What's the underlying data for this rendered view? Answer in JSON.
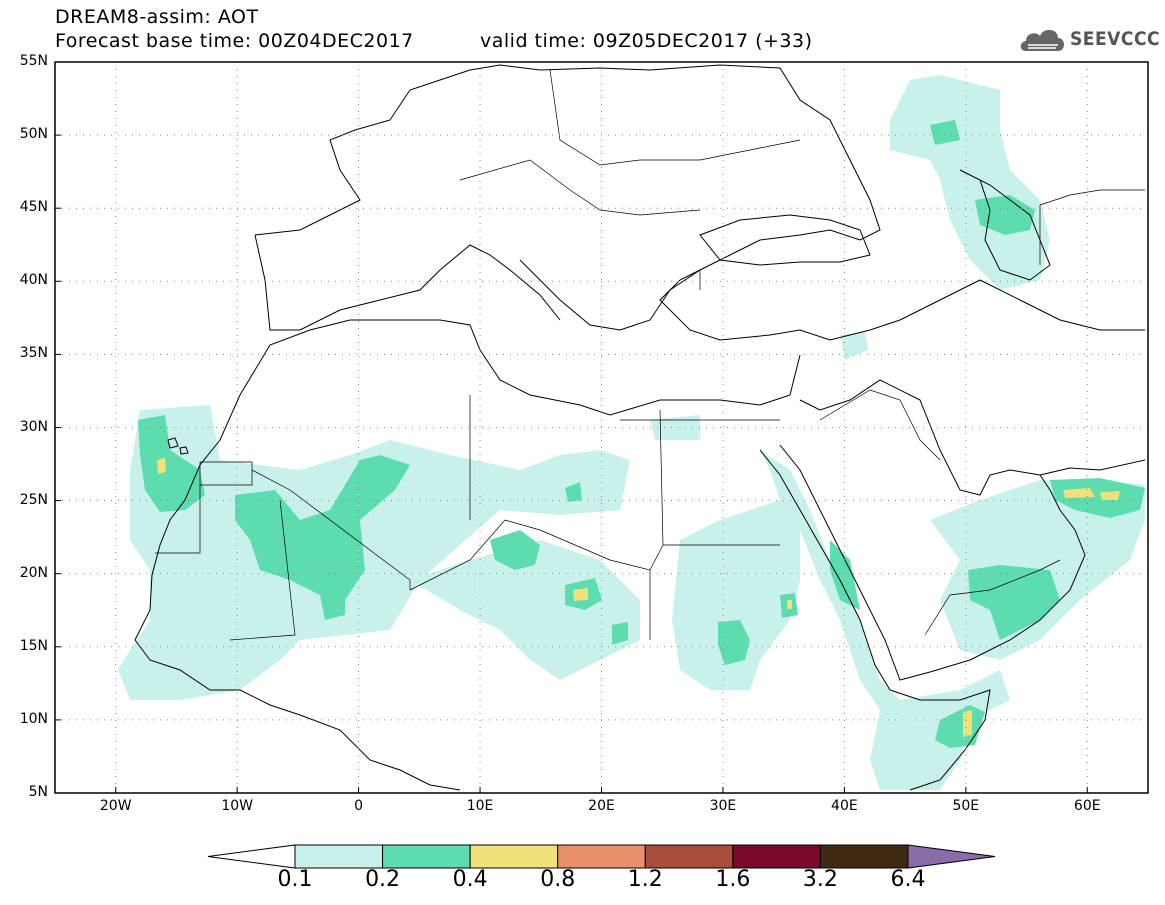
{
  "header": {
    "title_line1": "DREAM8-assim: AOT",
    "title_line2": "Forecast base time: 00Z04DEC2017",
    "valid_time": "valid time: 09Z05DEC2017 (+33)"
  },
  "logo": {
    "text": "SEEVCCC",
    "icon": "cloud-icon"
  },
  "map": {
    "lat_labels": [
      "55N",
      "50N",
      "45N",
      "40N",
      "35N",
      "30N",
      "25N",
      "20N",
      "15N",
      "10N",
      "5N"
    ],
    "lon_labels": [
      "20W",
      "10W",
      "0",
      "10E",
      "20E",
      "30E",
      "40E",
      "50E",
      "60E"
    ],
    "lon_range": [
      -25,
      65
    ],
    "lat_range": [
      5,
      55
    ]
  },
  "colorbar": {
    "levels": [
      "0.1",
      "0.2",
      "0.4",
      "0.8",
      "1.2",
      "1.6",
      "3.2",
      "6.4"
    ],
    "colors": [
      "#ffffff",
      "#c9f1ec",
      "#5ddcb0",
      "#f0e17a",
      "#e8916a",
      "#a94d3c",
      "#7b0a2a",
      "#3f2b14",
      "#8a6ca8"
    ]
  },
  "fill_colors": {
    "low": "#c9f1ec",
    "mid": "#5ddcb0",
    "high": "#f0e17a"
  }
}
